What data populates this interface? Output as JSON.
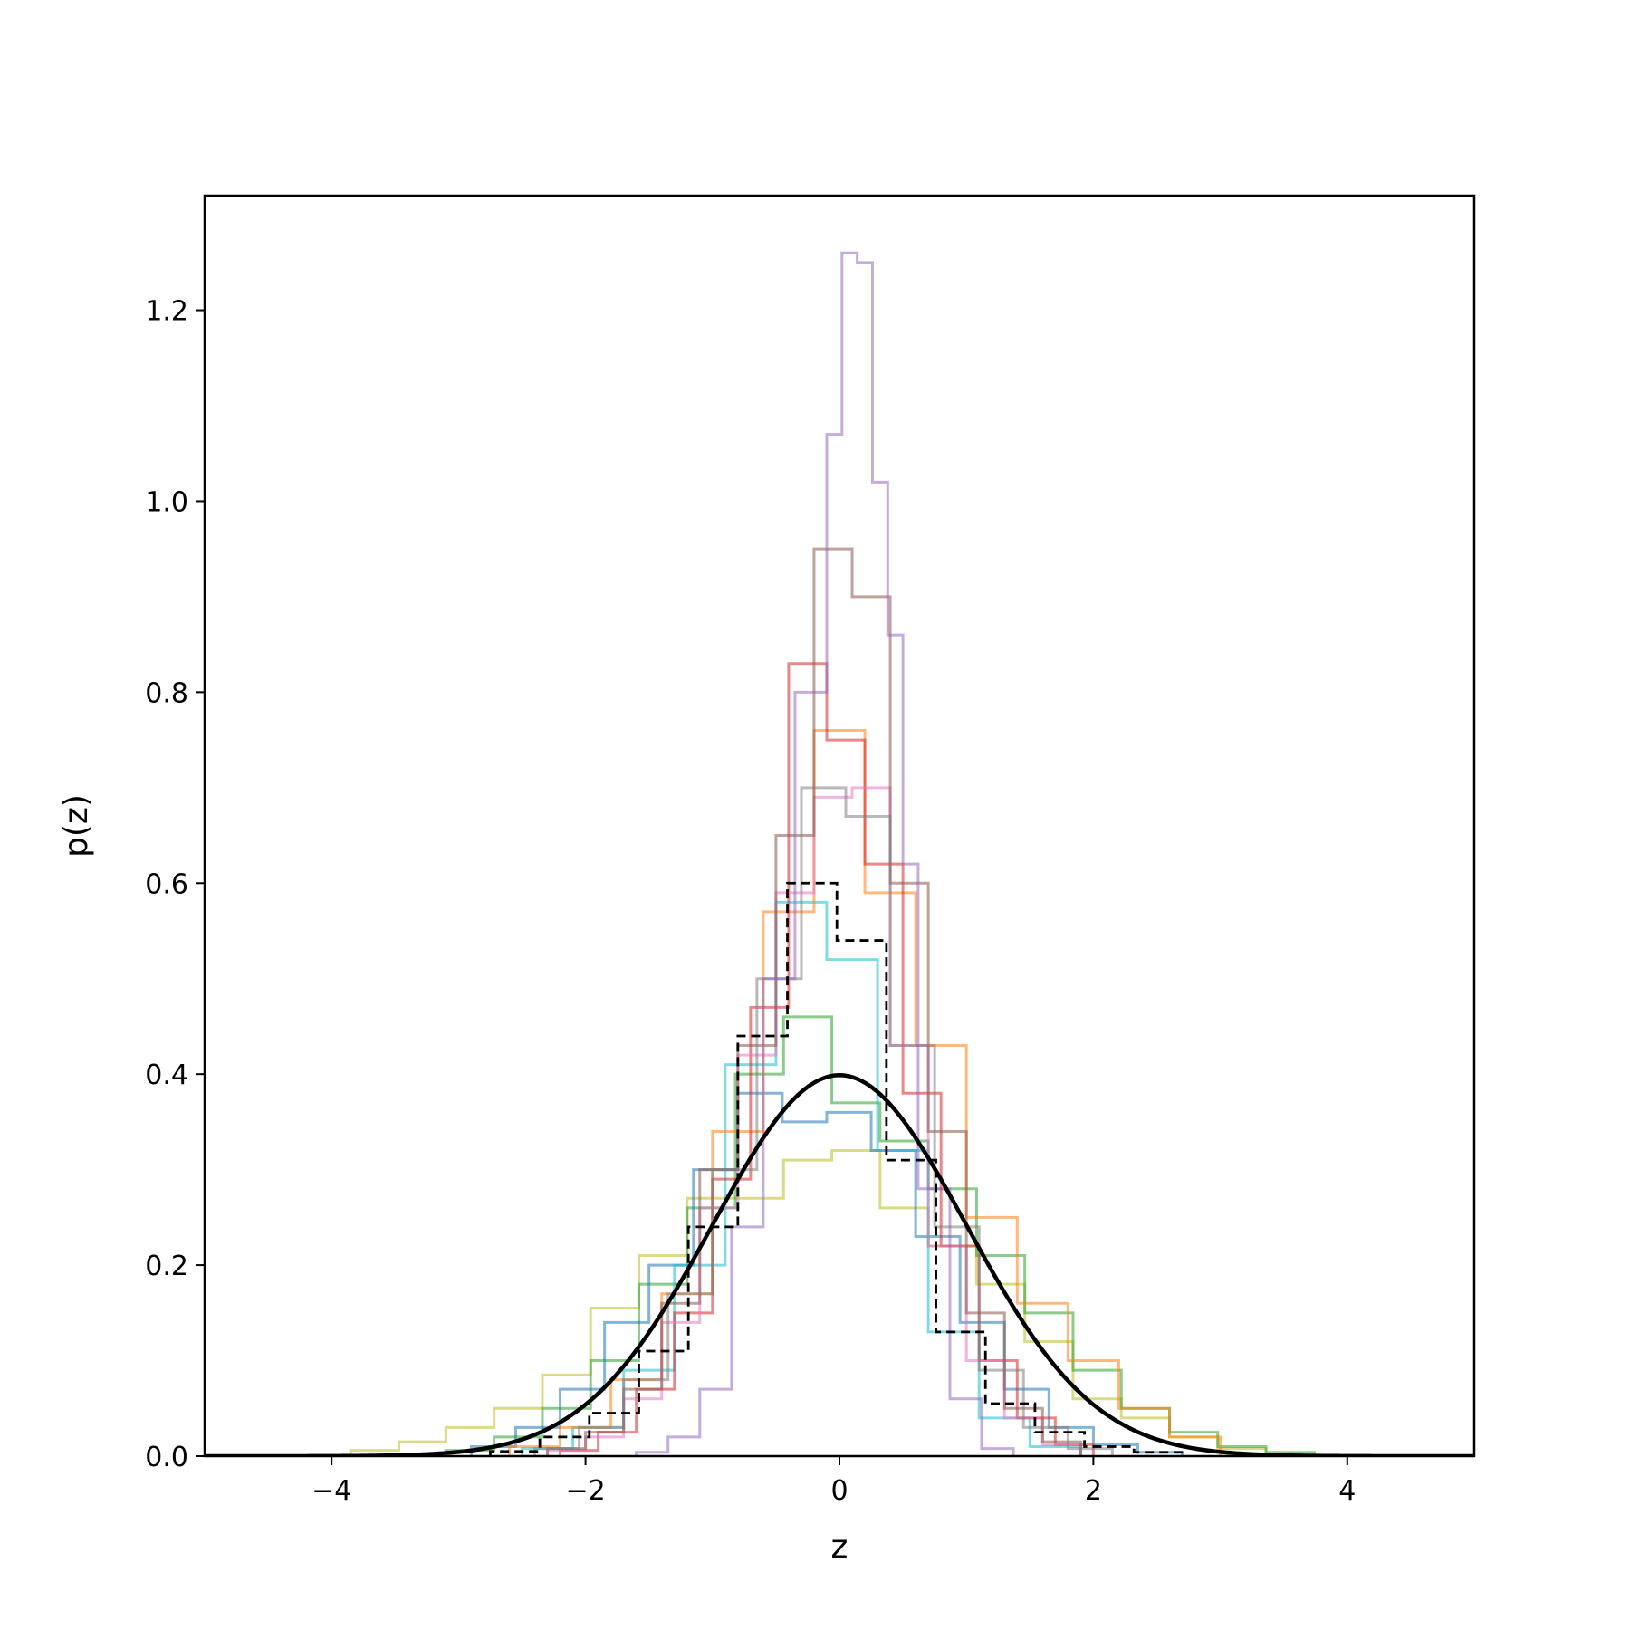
{
  "chart_data": {
    "type": "line",
    "title": "",
    "xlabel": "z",
    "ylabel": "p(z)",
    "xlim": [
      -5,
      5
    ],
    "ylim": [
      0,
      1.32
    ],
    "xticks": [
      -4,
      -2,
      0,
      2,
      4
    ],
    "xtick_labels": [
      "−4",
      "−2",
      "0",
      "2",
      "4"
    ],
    "yticks": [
      0.0,
      0.2,
      0.4,
      0.6,
      0.8,
      1.0,
      1.2
    ],
    "ytick_labels": [
      "0.0",
      "0.2",
      "0.4",
      "0.6",
      "0.8",
      "1.0",
      "1.2"
    ],
    "grid": false,
    "legend": "none",
    "series": [
      {
        "kind": "step-hist",
        "color": "#bcbd22",
        "edges": [
          -3.85,
          -3.47,
          -3.1,
          -2.72,
          -2.34,
          -1.96,
          -1.58,
          -1.2,
          -0.82,
          -0.44,
          -0.06,
          0.32,
          0.7,
          1.08,
          1.46,
          1.84,
          2.22,
          2.6,
          2.98,
          3.36
        ],
        "values": [
          0.006,
          0.015,
          0.03,
          0.05,
          0.085,
          0.155,
          0.21,
          0.27,
          0.27,
          0.31,
          0.32,
          0.26,
          0.22,
          0.18,
          0.12,
          0.06,
          0.04,
          0.02,
          0.008
        ]
      },
      {
        "kind": "step-hist",
        "color": "#2ca02c",
        "edges": [
          -3.1,
          -2.72,
          -2.34,
          -1.96,
          -1.58,
          -1.2,
          -0.82,
          -0.44,
          -0.06,
          0.32,
          0.7,
          1.08,
          1.46,
          1.84,
          2.22,
          2.6,
          2.98,
          3.36,
          3.74
        ],
        "values": [
          0.006,
          0.02,
          0.05,
          0.1,
          0.18,
          0.26,
          0.4,
          0.46,
          0.37,
          0.33,
          0.28,
          0.21,
          0.15,
          0.09,
          0.05,
          0.025,
          0.01,
          0.004
        ]
      },
      {
        "kind": "step-hist",
        "color": "#1f77b4",
        "edges": [
          -2.9,
          -2.55,
          -2.2,
          -1.85,
          -1.5,
          -1.15,
          -0.8,
          -0.45,
          -0.1,
          0.25,
          0.6,
          0.95,
          1.3,
          1.65,
          2.0,
          2.35,
          2.7
        ],
        "values": [
          0.01,
          0.03,
          0.07,
          0.14,
          0.2,
          0.3,
          0.38,
          0.35,
          0.36,
          0.32,
          0.23,
          0.14,
          0.07,
          0.03,
          0.012,
          0.004
        ]
      },
      {
        "kind": "step-hist",
        "color": "#17becf",
        "edges": [
          -2.5,
          -2.1,
          -1.7,
          -1.3,
          -0.9,
          -0.5,
          -0.1,
          0.3,
          0.7,
          1.1,
          1.5,
          1.9
        ],
        "values": [
          0.008,
          0.03,
          0.09,
          0.2,
          0.41,
          0.58,
          0.52,
          0.32,
          0.13,
          0.04,
          0.01
        ]
      },
      {
        "kind": "step-hist",
        "color": "#ff7f0e",
        "edges": [
          -2.6,
          -2.2,
          -1.8,
          -1.4,
          -1.0,
          -0.6,
          -0.2,
          0.2,
          0.6,
          1.0,
          1.4,
          1.8,
          2.2,
          2.6,
          3.0
        ],
        "values": [
          0.01,
          0.03,
          0.08,
          0.17,
          0.34,
          0.57,
          0.76,
          0.59,
          0.43,
          0.25,
          0.16,
          0.1,
          0.05,
          0.02
        ]
      },
      {
        "kind": "step-hist",
        "color": "#d62728",
        "edges": [
          -2.2,
          -1.9,
          -1.6,
          -1.3,
          -1.0,
          -0.7,
          -0.4,
          -0.1,
          0.2,
          0.5,
          0.8,
          1.1,
          1.4,
          1.7,
          2.0
        ],
        "values": [
          0.006,
          0.025,
          0.07,
          0.15,
          0.29,
          0.47,
          0.83,
          0.75,
          0.62,
          0.38,
          0.22,
          0.1,
          0.04,
          0.012
        ]
      },
      {
        "kind": "step-hist",
        "color": "#e377c2",
        "edges": [
          -2.3,
          -2.0,
          -1.7,
          -1.4,
          -1.1,
          -0.8,
          -0.5,
          -0.2,
          0.1,
          0.4,
          0.7,
          1.0,
          1.3,
          1.6,
          1.9
        ],
        "values": [
          0.006,
          0.02,
          0.06,
          0.14,
          0.26,
          0.42,
          0.59,
          0.69,
          0.7,
          0.43,
          0.22,
          0.1,
          0.04,
          0.012
        ]
      },
      {
        "kind": "step-hist",
        "color": "#8c564b",
        "edges": [
          -2.3,
          -2.0,
          -1.7,
          -1.4,
          -1.1,
          -0.8,
          -0.5,
          -0.2,
          0.1,
          0.4,
          0.7,
          1.0,
          1.3,
          1.6,
          1.9
        ],
        "values": [
          0.008,
          0.025,
          0.07,
          0.16,
          0.3,
          0.43,
          0.65,
          0.95,
          0.9,
          0.6,
          0.34,
          0.15,
          0.05,
          0.015
        ]
      },
      {
        "kind": "step-hist",
        "color": "#7f7f7f",
        "edges": [
          -2.4,
          -2.05,
          -1.7,
          -1.35,
          -1.0,
          -0.65,
          -0.3,
          0.05,
          0.4,
          0.75,
          1.1,
          1.45,
          1.8,
          2.15
        ],
        "values": [
          0.008,
          0.03,
          0.08,
          0.17,
          0.3,
          0.5,
          0.7,
          0.67,
          0.43,
          0.24,
          0.09,
          0.03,
          0.008
        ]
      },
      {
        "kind": "step-hist",
        "color": "#9467bd",
        "edges": [
          -1.6,
          -1.35,
          -1.1,
          -0.85,
          -0.6,
          -0.35,
          -0.1,
          0.02,
          0.14,
          0.26,
          0.38,
          0.5,
          0.62,
          0.87,
          1.12,
          1.37
        ],
        "values": [
          0.004,
          0.02,
          0.07,
          0.24,
          0.5,
          0.8,
          1.07,
          1.26,
          1.25,
          1.02,
          0.86,
          0.62,
          0.28,
          0.06,
          0.008
        ]
      },
      {
        "kind": "step-hist",
        "color": "#000000",
        "dashed": true,
        "edges": [
          -2.75,
          -2.36,
          -1.97,
          -1.58,
          -1.19,
          -0.8,
          -0.41,
          -0.02,
          0.37,
          0.76,
          1.15,
          1.54,
          1.93,
          2.32,
          2.71
        ],
        "values": [
          0.005,
          0.02,
          0.045,
          0.11,
          0.24,
          0.44,
          0.6,
          0.54,
          0.31,
          0.13,
          0.055,
          0.025,
          0.01,
          0.004
        ]
      },
      {
        "kind": "curve",
        "color": "#000000",
        "name": "",
        "function": "standard normal pdf",
        "x_range": [
          -5,
          5
        ]
      }
    ]
  }
}
